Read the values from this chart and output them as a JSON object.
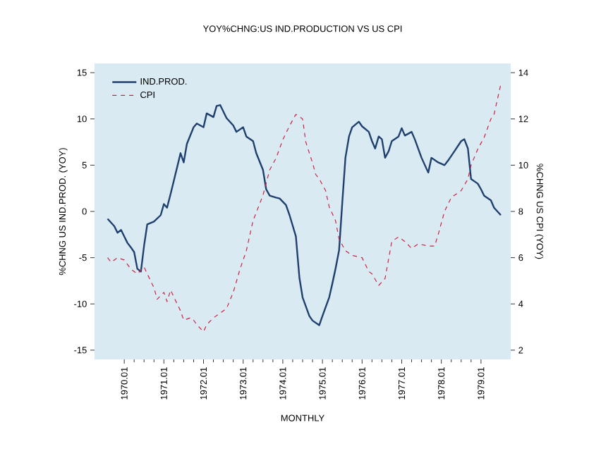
{
  "chart_data": {
    "type": "line",
    "title": "YOY%CHNG:US IND.PRODUCTION VS US CPI",
    "xlabel": "MONTHLY",
    "ylabel": "%CHNG US IND.PROD. (YOY)",
    "y2label": "%CHNG US CPI (YOY)",
    "xlim": [
      "1969-04",
      "1979-10"
    ],
    "xticks": [
      {
        "value": "1970-01",
        "label": "1970.01"
      },
      {
        "value": "1971-01",
        "label": "1971.01"
      },
      {
        "value": "1972-01",
        "label": "1972.01"
      },
      {
        "value": "1973-01",
        "label": "1973.01"
      },
      {
        "value": "1974-01",
        "label": "1974.01"
      },
      {
        "value": "1975-01",
        "label": "1975.01"
      },
      {
        "value": "1976-01",
        "label": "1976.01"
      },
      {
        "value": "1977-01",
        "label": "1977.01"
      },
      {
        "value": "1978-01",
        "label": "1978.01"
      },
      {
        "value": "1979-01",
        "label": "1979.01"
      }
    ],
    "ylim": [
      -16,
      16
    ],
    "yticks": [
      -15,
      -10,
      -5,
      0,
      5,
      10,
      15
    ],
    "y2lim": [
      1.6,
      14.4
    ],
    "y2ticks": [
      2,
      4,
      6,
      8,
      10,
      12,
      14
    ],
    "legend": "top left",
    "grid": false,
    "marker": "none",
    "series": [
      {
        "name": "IND.PROD.",
        "color": "#1f3f6e",
        "line_style": "solid",
        "x": [
          "1969-08",
          "1969-10",
          "1969-11",
          "1969-12",
          "1970-01",
          "1970-02",
          "1970-03",
          "1970-04",
          "1970-05",
          "1970-06",
          "1970-07",
          "1970-08",
          "1970-10",
          "1970-12",
          "1971-01",
          "1971-02",
          "1971-03",
          "1971-05",
          "1971-06",
          "1971-07",
          "1971-08",
          "1971-10",
          "1971-11",
          "1972-01",
          "1972-02",
          "1972-04",
          "1972-05",
          "1972-06",
          "1972-08",
          "1972-10",
          "1972-11",
          "1973-01",
          "1973-02",
          "1973-04",
          "1973-05",
          "1973-07",
          "1973-08",
          "1973-09",
          "1973-11",
          "1973-12",
          "1974-02",
          "1974-03",
          "1974-05",
          "1974-06",
          "1974-07",
          "1974-09",
          "1974-10",
          "1974-12",
          "1975-01",
          "1975-03",
          "1975-04",
          "1975-05",
          "1975-06",
          "1975-07",
          "1975-08",
          "1975-09",
          "1975-10",
          "1975-12",
          "1976-01",
          "1976-03",
          "1976-04",
          "1976-05",
          "1976-06",
          "1976-07",
          "1976-08",
          "1976-09",
          "1976-10",
          "1976-12",
          "1977-01",
          "1977-02",
          "1977-04",
          "1977-05",
          "1977-07",
          "1977-09",
          "1977-10",
          "1977-12",
          "1978-02",
          "1978-03",
          "1978-05",
          "1978-07",
          "1978-08",
          "1978-09",
          "1978-10",
          "1978-12",
          "1979-01",
          "1979-02",
          "1979-04",
          "1979-05",
          "1979-07"
        ],
        "values": [
          -0.8,
          -1.6,
          -2.3,
          -2.0,
          -2.7,
          -3.4,
          -3.9,
          -4.4,
          -6.2,
          -6.5,
          -3.7,
          -1.4,
          -1.1,
          -0.4,
          0.8,
          0.4,
          1.9,
          4.7,
          6.3,
          5.3,
          7.3,
          9.1,
          9.5,
          9.1,
          10.6,
          10.2,
          11.4,
          11.5,
          10.1,
          9.3,
          8.6,
          9.1,
          8.1,
          7.6,
          6.3,
          4.5,
          2.4,
          1.7,
          1.5,
          1.4,
          0.7,
          -0.4,
          -2.7,
          -7.2,
          -9.3,
          -11.3,
          -11.8,
          -12.3,
          -11.3,
          -9.3,
          -7.8,
          -6.2,
          -4.2,
          0.9,
          5.8,
          8.1,
          9.1,
          9.7,
          9.2,
          8.6,
          7.6,
          6.8,
          8.1,
          7.8,
          5.8,
          6.5,
          7.6,
          8.1,
          9.0,
          8.2,
          8.6,
          7.8,
          5.8,
          4.2,
          5.8,
          5.3,
          5.0,
          5.5,
          6.5,
          7.6,
          7.8,
          6.8,
          3.5,
          3.0,
          2.4,
          1.7,
          1.2,
          0.4,
          -0.4
        ]
      },
      {
        "name": "CPI",
        "color": "#cc2244",
        "line_style": "dashed",
        "axis": "y2",
        "x": [
          "1969-08",
          "1969-09",
          "1969-11",
          "1970-01",
          "1970-03",
          "1970-05",
          "1970-07",
          "1970-08",
          "1970-10",
          "1970-11",
          "1971-01",
          "1971-02",
          "1971-03",
          "1971-04",
          "1971-06",
          "1971-07",
          "1971-09",
          "1971-10",
          "1971-11",
          "1972-01",
          "1972-02",
          "1972-04",
          "1972-06",
          "1972-08",
          "1972-10",
          "1972-12",
          "1973-02",
          "1973-04",
          "1973-07",
          "1973-09",
          "1973-11",
          "1974-01",
          "1974-03",
          "1974-05",
          "1974-07",
          "1974-08",
          "1974-10",
          "1974-11",
          "1974-12",
          "1975-02",
          "1975-03",
          "1975-05",
          "1975-06",
          "1975-08",
          "1975-10",
          "1976-01",
          "1976-03",
          "1976-04",
          "1976-06",
          "1976-08",
          "1976-10",
          "1976-12",
          "1977-02",
          "1977-04",
          "1977-06",
          "1977-09",
          "1977-11",
          "1977-12",
          "1978-02",
          "1978-04",
          "1978-07",
          "1978-09",
          "1978-10",
          "1978-12",
          "1979-02",
          "1979-04",
          "1979-05",
          "1979-07"
        ],
        "values": [
          6.0,
          5.8,
          6.0,
          5.9,
          5.5,
          5.3,
          5.6,
          5.3,
          4.7,
          4.2,
          4.5,
          4.1,
          4.6,
          4.3,
          3.7,
          3.3,
          3.4,
          3.3,
          3.1,
          2.8,
          3.1,
          3.4,
          3.6,
          3.8,
          4.5,
          5.5,
          6.3,
          7.6,
          8.7,
          9.8,
          10.3,
          11.1,
          11.7,
          12.2,
          12.0,
          11.0,
          10.1,
          9.6,
          9.4,
          8.9,
          8.2,
          7.6,
          6.8,
          6.3,
          6.1,
          6.0,
          5.4,
          5.3,
          4.8,
          5.1,
          6.7,
          6.9,
          6.7,
          6.4,
          6.6,
          6.5,
          6.5,
          7.0,
          8.0,
          8.6,
          8.9,
          9.4,
          10.0,
          10.7,
          11.2,
          12.0,
          12.2,
          13.5
        ]
      }
    ]
  }
}
